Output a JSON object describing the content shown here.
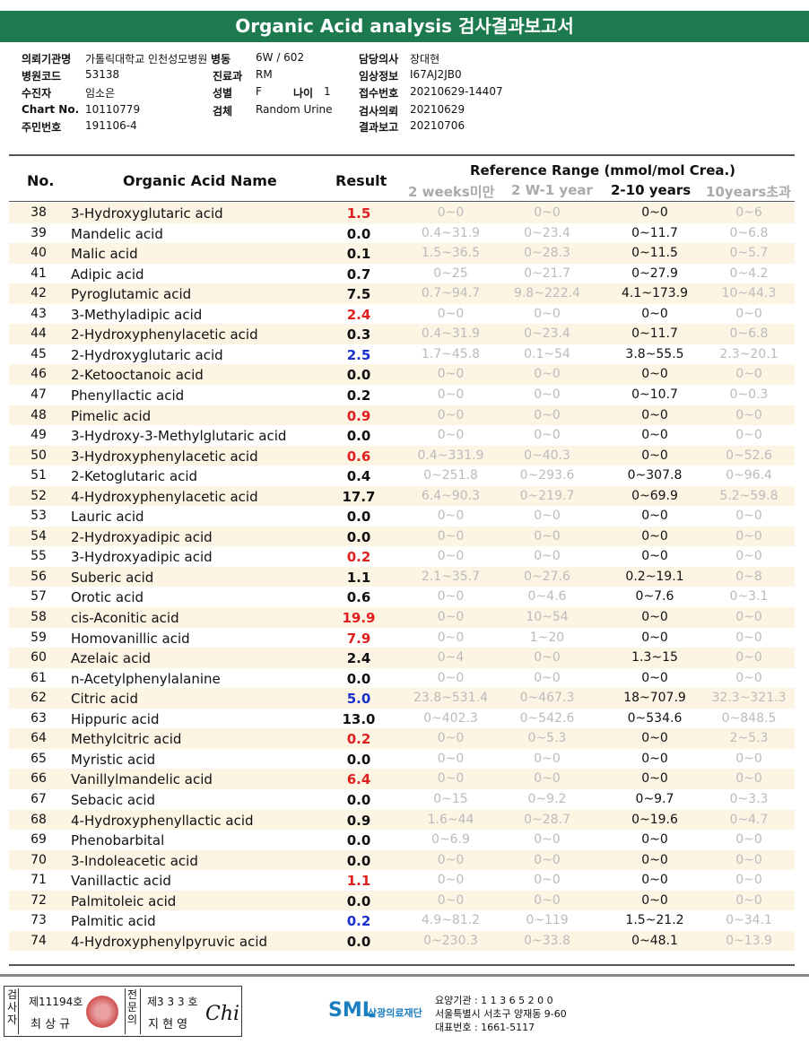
{
  "title": "Organic Acid analysis 검사결과보고서",
  "info": {
    "institution_label": "의뢰기관명",
    "institution": "가톨릭대학교 인천성모병원",
    "ward_label": "병동",
    "ward": "6W / 602",
    "doctor_label": "담당의사",
    "doctor": "장대현",
    "hospital_code_label": "병원코드",
    "hospital_code": "53138",
    "dept_label": "진료과",
    "dept": "RM",
    "clinical_label": "임상정보",
    "clinical": "I67AJ2JB0",
    "patient_label": "수진자",
    "patient": "임소은",
    "sex_label": "성별",
    "sex": "F",
    "age_label": "나이",
    "age": "1",
    "receipt_label": "접수번호",
    "receipt": "20210629-14407",
    "chart_label": "Chart No.",
    "chart": "10110779",
    "specimen_label": "검체",
    "specimen": "Random Urine",
    "request_label": "검사의뢰",
    "request": "20210629",
    "id_label": "주민번호",
    "id": "191106-4",
    "report_label": "결과보고",
    "report": "20210706"
  },
  "table": {
    "col_no": "No.",
    "col_name": "Organic Acid Name",
    "col_result": "Result",
    "ref_title": "Reference Range (mmol/mol Crea.)",
    "ref_cols": [
      "2 weeks미만",
      "2 W-1 year",
      "2-10 years",
      "10years초과"
    ],
    "rows": [
      {
        "no": "38",
        "name": "3-Hydroxyglutaric acid",
        "result": "1.5",
        "color": "#e02020",
        "r": [
          "0~0",
          "0~0",
          "0~0",
          "0~6"
        ]
      },
      {
        "no": "39",
        "name": "Mandelic acid",
        "result": "0.0",
        "color": "#111",
        "r": [
          "0.4~31.9",
          "0~23.4",
          "0~11.7",
          "0~6.8"
        ]
      },
      {
        "no": "40",
        "name": "Malic acid",
        "result": "0.1",
        "color": "#111",
        "r": [
          "1.5~36.5",
          "0~28.3",
          "0~11.5",
          "0~5.7"
        ]
      },
      {
        "no": "41",
        "name": "Adipic acid",
        "result": "0.7",
        "color": "#111",
        "r": [
          "0~25",
          "0~21.7",
          "0~27.9",
          "0~4.2"
        ]
      },
      {
        "no": "42",
        "name": "Pyroglutamic acid",
        "result": "7.5",
        "color": "#111",
        "r": [
          "0.7~94.7",
          "9.8~222.4",
          "4.1~173.9",
          "10~44.3"
        ]
      },
      {
        "no": "43",
        "name": "3-Methyladipic acid",
        "result": "2.4",
        "color": "#e02020",
        "r": [
          "0~0",
          "0~0",
          "0~0",
          "0~0"
        ]
      },
      {
        "no": "44",
        "name": "2-Hydroxyphenylacetic acid",
        "result": "0.3",
        "color": "#111",
        "r": [
          "0.4~31.9",
          "0~23.4",
          "0~11.7",
          "0~6.8"
        ]
      },
      {
        "no": "45",
        "name": "2-Hydroxyglutaric acid",
        "result": "2.5",
        "color": "#1a2fd0",
        "r": [
          "1.7~45.8",
          "0.1~54",
          "3.8~55.5",
          "2.3~20.1"
        ]
      },
      {
        "no": "46",
        "name": "2-Ketooctanoic acid",
        "result": "0.0",
        "color": "#111",
        "r": [
          "0~0",
          "0~0",
          "0~0",
          "0~0"
        ]
      },
      {
        "no": "47",
        "name": "Phenyllactic acid",
        "result": "0.2",
        "color": "#111",
        "r": [
          "0~0",
          "0~0",
          "0~10.7",
          "0~0.3"
        ]
      },
      {
        "no": "48",
        "name": "Pimelic acid",
        "result": "0.9",
        "color": "#e02020",
        "r": [
          "0~0",
          "0~0",
          "0~0",
          "0~0"
        ]
      },
      {
        "no": "49",
        "name": "3-Hydroxy-3-Methylglutaric acid",
        "result": "0.0",
        "color": "#111",
        "r": [
          "0~0",
          "0~0",
          "0~0",
          "0~0"
        ]
      },
      {
        "no": "50",
        "name": "3-Hydroxyphenylacetic acid",
        "result": "0.6",
        "color": "#e02020",
        "r": [
          "0.4~331.9",
          "0~40.3",
          "0~0",
          "0~52.6"
        ]
      },
      {
        "no": "51",
        "name": "2-Ketoglutaric acid",
        "result": "0.4",
        "color": "#111",
        "r": [
          "0~251.8",
          "0~293.6",
          "0~307.8",
          "0~96.4"
        ]
      },
      {
        "no": "52",
        "name": "4-Hydroxyphenylacetic acid",
        "result": "17.7",
        "color": "#111",
        "r": [
          "6.4~90.3",
          "0~219.7",
          "0~69.9",
          "5.2~59.8"
        ]
      },
      {
        "no": "53",
        "name": "Lauric acid",
        "result": "0.0",
        "color": "#111",
        "r": [
          "0~0",
          "0~0",
          "0~0",
          "0~0"
        ]
      },
      {
        "no": "54",
        "name": "2-Hydroxyadipic acid",
        "result": "0.0",
        "color": "#111",
        "r": [
          "0~0",
          "0~0",
          "0~0",
          "0~0"
        ]
      },
      {
        "no": "55",
        "name": "3-Hydroxyadipic acid",
        "result": "0.2",
        "color": "#e02020",
        "r": [
          "0~0",
          "0~0",
          "0~0",
          "0~0"
        ]
      },
      {
        "no": "56",
        "name": "Suberic acid",
        "result": "1.1",
        "color": "#111",
        "r": [
          "2.1~35.7",
          "0~27.6",
          "0.2~19.1",
          "0~8"
        ]
      },
      {
        "no": "57",
        "name": "Orotic acid",
        "result": "0.6",
        "color": "#111",
        "r": [
          "0~0",
          "0~4.6",
          "0~7.6",
          "0~3.1"
        ]
      },
      {
        "no": "58",
        "name": "cis-Aconitic acid",
        "result": "19.9",
        "color": "#e02020",
        "r": [
          "0~0",
          "10~54",
          "0~0",
          "0~0"
        ]
      },
      {
        "no": "59",
        "name": "Homovanillic acid",
        "result": "7.9",
        "color": "#e02020",
        "r": [
          "0~0",
          "1~20",
          "0~0",
          "0~0"
        ]
      },
      {
        "no": "60",
        "name": "Azelaic acid",
        "result": "2.4",
        "color": "#111",
        "r": [
          "0~4",
          "0~0",
          "1.3~15",
          "0~0"
        ]
      },
      {
        "no": "61",
        "name": "n-Acetylphenylalanine",
        "result": "0.0",
        "color": "#111",
        "r": [
          "0~0",
          "0~0",
          "0~0",
          "0~0"
        ]
      },
      {
        "no": "62",
        "name": "Citric acid",
        "result": "5.0",
        "color": "#1a2fd0",
        "r": [
          "23.8~531.4",
          "0~467.3",
          "18~707.9",
          "32.3~321.3"
        ]
      },
      {
        "no": "63",
        "name": "Hippuric acid",
        "result": "13.0",
        "color": "#111",
        "r": [
          "0~402.3",
          "0~542.6",
          "0~534.6",
          "0~848.5"
        ]
      },
      {
        "no": "64",
        "name": "Methylcitric acid",
        "result": "0.2",
        "color": "#e02020",
        "r": [
          "0~0",
          "0~5.3",
          "0~0",
          "2~5.3"
        ]
      },
      {
        "no": "65",
        "name": "Myristic acid",
        "result": "0.0",
        "color": "#111",
        "r": [
          "0~0",
          "0~0",
          "0~0",
          "0~0"
        ]
      },
      {
        "no": "66",
        "name": "Vanillylmandelic acid",
        "result": "6.4",
        "color": "#e02020",
        "r": [
          "0~0",
          "0~0",
          "0~0",
          "0~0"
        ]
      },
      {
        "no": "67",
        "name": "Sebacic acid",
        "result": "0.0",
        "color": "#111",
        "r": [
          "0~15",
          "0~9.2",
          "0~9.7",
          "0~3.3"
        ]
      },
      {
        "no": "68",
        "name": "4-Hydroxyphenyllactic acid",
        "result": "0.9",
        "color": "#111",
        "r": [
          "1.6~44",
          "0~28.7",
          "0~19.6",
          "0~4.7"
        ]
      },
      {
        "no": "69",
        "name": "Phenobarbital",
        "result": "0.0",
        "color": "#111",
        "r": [
          "0~6.9",
          "0~0",
          "0~0",
          "0~0"
        ]
      },
      {
        "no": "70",
        "name": "3-Indoleacetic acid",
        "result": "0.0",
        "color": "#111",
        "r": [
          "0~0",
          "0~0",
          "0~0",
          "0~0"
        ]
      },
      {
        "no": "71",
        "name": "Vanillactic acid",
        "result": "1.1",
        "color": "#e02020",
        "r": [
          "0~0",
          "0~0",
          "0~0",
          "0~0"
        ]
      },
      {
        "no": "72",
        "name": "Palmitoleic acid",
        "result": "0.0",
        "color": "#111",
        "r": [
          "0~0",
          "0~0",
          "0~0",
          "0~0"
        ]
      },
      {
        "no": "73",
        "name": "Palmitic acid",
        "result": "0.2",
        "color": "#1a2fd0",
        "r": [
          "4.9~81.2",
          "0~119",
          "1.5~21.2",
          "0~34.1"
        ]
      },
      {
        "no": "74",
        "name": "4-Hydroxyphenylpyruvic acid",
        "result": "0.0",
        "color": "#111",
        "r": [
          "0~230.3",
          "0~33.8",
          "0~48.1",
          "0~13.9"
        ]
      }
    ]
  },
  "footer": {
    "exam_label": "검사자",
    "exam_no": "제11194호",
    "exam_name": "최 상 규",
    "spec_label": "전문의",
    "spec_no": "제3 3 3 호",
    "spec_name": "지 현 영",
    "signature": "Chi",
    "logo": "SML",
    "org": "삼광의료재단",
    "inst_code": "요양기관 : 1 1 3 6 5 2 0 0",
    "address": "서울특별시 서초구 양재동 9-60",
    "phone": "대표번호 : 1661-5117"
  }
}
